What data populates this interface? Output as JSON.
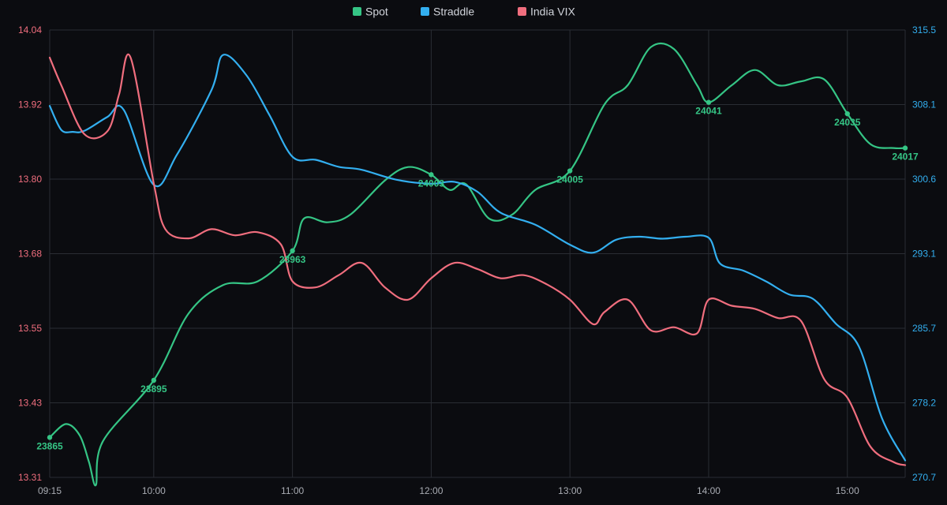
{
  "chart_data": {
    "type": "line",
    "legend_position": "top-center",
    "grid": true,
    "colors": {
      "spot": "#35c585",
      "straddle": "#33aff0",
      "vix": "#f06e7e",
      "grid": "#2a2d34",
      "axis_text": "#a9acb3"
    },
    "x_ticks": [
      "09:15",
      "10:00",
      "11:00",
      "12:00",
      "13:00",
      "14:00",
      "15:00"
    ],
    "x_range": [
      "09:15",
      "15:25"
    ],
    "y_left": {
      "series": "India VIX",
      "range": [
        13.31,
        14.04
      ],
      "ticks": [
        "14.04",
        "13.92",
        "13.80",
        "13.68",
        "13.55",
        "13.43",
        "13.31"
      ]
    },
    "y_right": {
      "series": "Straddle",
      "range": [
        270.7,
        315.5
      ],
      "ticks": [
        "315.5",
        "308.1",
        "300.6",
        "293.1",
        "285.7",
        "278.2",
        "270.7"
      ]
    },
    "spot_range": [
      23844,
      24079
    ],
    "series": [
      {
        "name": "Spot",
        "key": "spot",
        "axis": "hidden",
        "points": [
          [
            "09:15",
            23865
          ],
          [
            "09:22",
            23872
          ],
          [
            "09:28",
            23866
          ],
          [
            "09:32",
            23852
          ],
          [
            "09:35",
            23840
          ],
          [
            "09:38",
            23863
          ],
          [
            "10:00",
            23895
          ],
          [
            "10:15",
            23930
          ],
          [
            "10:30",
            23945
          ],
          [
            "10:45",
            23947
          ],
          [
            "11:00",
            23963
          ],
          [
            "11:05",
            23980
          ],
          [
            "11:15",
            23978
          ],
          [
            "11:25",
            23982
          ],
          [
            "11:40",
            24000
          ],
          [
            "11:50",
            24007
          ],
          [
            "12:00",
            24003
          ],
          [
            "12:08",
            23995
          ],
          [
            "12:15",
            23998
          ],
          [
            "12:25",
            23980
          ],
          [
            "12:35",
            23982
          ],
          [
            "12:45",
            23995
          ],
          [
            "13:00",
            24005
          ],
          [
            "13:15",
            24040
          ],
          [
            "13:25",
            24050
          ],
          [
            "13:35",
            24070
          ],
          [
            "13:45",
            24069
          ],
          [
            "13:55",
            24050
          ],
          [
            "14:00",
            24041
          ],
          [
            "14:10",
            24050
          ],
          [
            "14:20",
            24058
          ],
          [
            "14:30",
            24050
          ],
          [
            "14:40",
            24052
          ],
          [
            "14:50",
            24053
          ],
          [
            "15:00",
            24035
          ],
          [
            "15:10",
            24019
          ],
          [
            "15:20",
            24017
          ],
          [
            "15:25",
            24017
          ]
        ],
        "labels": [
          [
            "09:15",
            23865,
            "23865"
          ],
          [
            "10:00",
            23895,
            "23895"
          ],
          [
            "11:00",
            23963,
            "23963"
          ],
          [
            "12:00",
            24003,
            "24003"
          ],
          [
            "13:00",
            24005,
            "24005"
          ],
          [
            "14:00",
            24041,
            "24041"
          ],
          [
            "15:00",
            24035,
            "24035"
          ],
          [
            "15:25",
            24017,
            "24017"
          ]
        ]
      },
      {
        "name": "Straddle",
        "key": "straddle",
        "axis": "right",
        "points": [
          [
            "09:15",
            307.9
          ],
          [
            "09:20",
            305.5
          ],
          [
            "09:25",
            305.3
          ],
          [
            "09:30",
            305.4
          ],
          [
            "09:40",
            306.8
          ],
          [
            "09:47",
            307.5
          ],
          [
            "10:00",
            300
          ],
          [
            "10:10",
            303
          ],
          [
            "10:25",
            309.5
          ],
          [
            "10:30",
            313
          ],
          [
            "10:40",
            311
          ],
          [
            "10:50",
            307
          ],
          [
            "11:00",
            302.8
          ],
          [
            "11:10",
            302.5
          ],
          [
            "11:20",
            301.8
          ],
          [
            "11:30",
            301.5
          ],
          [
            "11:45",
            300.5
          ],
          [
            "12:00",
            300.1
          ],
          [
            "12:10",
            300.3
          ],
          [
            "12:20",
            299.3
          ],
          [
            "12:30",
            297.2
          ],
          [
            "12:45",
            296
          ],
          [
            "13:00",
            294
          ],
          [
            "13:10",
            293.2
          ],
          [
            "13:20",
            294.5
          ],
          [
            "13:30",
            294.8
          ],
          [
            "13:40",
            294.6
          ],
          [
            "13:50",
            294.8
          ],
          [
            "14:00",
            294.7
          ],
          [
            "14:05",
            292.1
          ],
          [
            "14:15",
            291.4
          ],
          [
            "14:25",
            290.3
          ],
          [
            "14:35",
            289
          ],
          [
            "14:45",
            288.6
          ],
          [
            "14:55",
            286.1
          ],
          [
            "15:05",
            283.8
          ],
          [
            "15:15",
            276.6
          ],
          [
            "15:25",
            272.4
          ]
        ]
      },
      {
        "name": "India VIX",
        "key": "vix",
        "axis": "left",
        "points": [
          [
            "09:15",
            13.995
          ],
          [
            "09:20",
            13.95
          ],
          [
            "09:30",
            13.87
          ],
          [
            "09:40",
            13.875
          ],
          [
            "09:45",
            13.935
          ],
          [
            "09:50",
            13.995
          ],
          [
            "10:00",
            13.79
          ],
          [
            "10:05",
            13.715
          ],
          [
            "10:15",
            13.7
          ],
          [
            "10:25",
            13.715
          ],
          [
            "10:35",
            13.705
          ],
          [
            "10:45",
            13.71
          ],
          [
            "10:55",
            13.69
          ],
          [
            "11:00",
            13.63
          ],
          [
            "11:10",
            13.62
          ],
          [
            "11:20",
            13.64
          ],
          [
            "11:30",
            13.66
          ],
          [
            "11:40",
            13.62
          ],
          [
            "11:50",
            13.6
          ],
          [
            "12:00",
            13.635
          ],
          [
            "12:10",
            13.66
          ],
          [
            "12:20",
            13.65
          ],
          [
            "12:30",
            13.635
          ],
          [
            "12:40",
            13.64
          ],
          [
            "12:50",
            13.625
          ],
          [
            "13:00",
            13.6
          ],
          [
            "13:10",
            13.56
          ],
          [
            "13:15",
            13.58
          ],
          [
            "13:25",
            13.6
          ],
          [
            "13:35",
            13.55
          ],
          [
            "13:45",
            13.555
          ],
          [
            "13:55",
            13.545
          ],
          [
            "14:00",
            13.6
          ],
          [
            "14:10",
            13.59
          ],
          [
            "14:20",
            13.585
          ],
          [
            "14:30",
            13.57
          ],
          [
            "14:40",
            13.565
          ],
          [
            "14:50",
            13.47
          ],
          [
            "15:00",
            13.44
          ],
          [
            "15:10",
            13.36
          ],
          [
            "15:20",
            13.335
          ],
          [
            "15:25",
            13.33
          ]
        ]
      }
    ]
  }
}
